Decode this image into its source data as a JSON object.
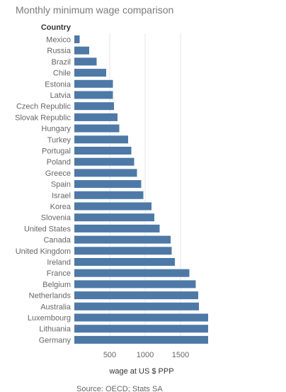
{
  "chart_data": {
    "type": "bar",
    "orientation": "horizontal",
    "title": "Monthly minimum wage comparison",
    "category_header": "Country",
    "xlabel": "wage at US $ PPP",
    "source": "Source: OECD; Stats SA",
    "categories": [
      "Mexico",
      "Russia",
      "Brazil",
      "Chile",
      "Estonia",
      "Latvia",
      "Czech Republic",
      "Slovak Republic",
      "Hungary",
      "Turkey",
      "Portugal",
      "Poland",
      "Greece",
      "Spain",
      "Israel",
      "Korea",
      "Slovenia",
      "United States",
      "Canada",
      "United Kingdom",
      "Ireland",
      "France",
      "Belgium",
      "Netherlands",
      "Australia",
      "Luxembourg",
      "Lithuania",
      "Germany"
    ],
    "values": [
      75,
      210,
      315,
      450,
      545,
      545,
      560,
      610,
      635,
      760,
      805,
      845,
      885,
      945,
      975,
      1090,
      1130,
      1205,
      1360,
      1375,
      1420,
      1625,
      1715,
      1750,
      1760,
      1890,
      1890,
      1890
    ],
    "xticks": [
      500,
      1000,
      1500
    ],
    "xlim": [
      0,
      2000
    ],
    "grid": true,
    "bar_color": "#4e79a7"
  }
}
